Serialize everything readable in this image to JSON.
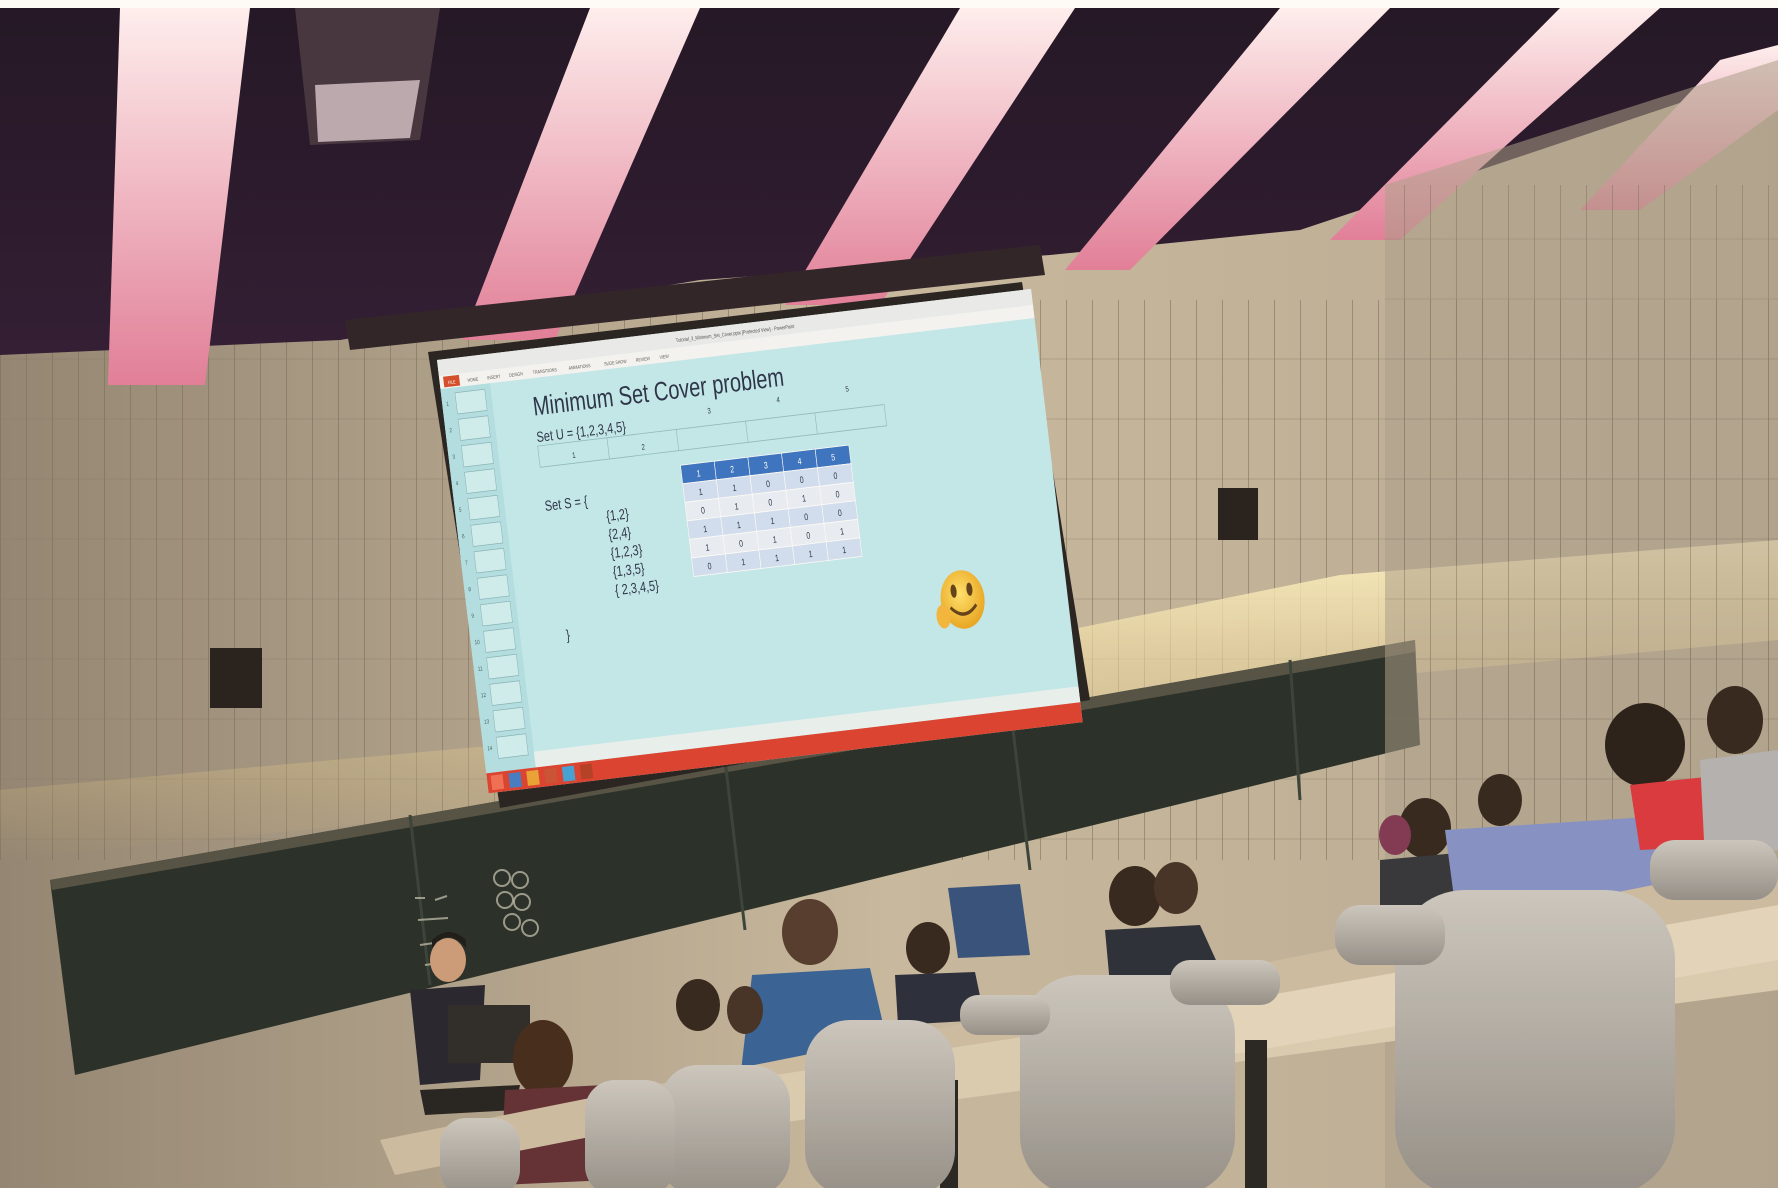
{
  "slide": {
    "window_title": "Tutorial_3_Minimum_Set_Cover.pptx [Protected View] - PowerPoint",
    "ribbon_tabs": [
      "FILE",
      "HOME",
      "INSERT",
      "DESIGN",
      "TRANSITIONS",
      "ANIMATIONS",
      "SLIDE SHOW",
      "REVIEW",
      "VIEW"
    ],
    "title": "Minimum Set Cover problem",
    "set_u": "Set U = {1,2,3,4,5}",
    "u_header_top": [
      "",
      "",
      "3",
      "4",
      "5"
    ],
    "u_header_bottom": [
      "1",
      "2"
    ],
    "set_s_open": "Set S = {",
    "set_s_items": [
      "{1,2}",
      "{2,4}",
      "{1,2,3}",
      "{1,3,5}",
      "{  2,3,4,5}"
    ],
    "set_s_close": "}",
    "matrix_header": [
      "1",
      "2",
      "3",
      "4",
      "5"
    ],
    "matrix_rows": [
      [
        "1",
        "1",
        "0",
        "0",
        "0"
      ],
      [
        "0",
        "1",
        "0",
        "1",
        "0"
      ],
      [
        "1",
        "1",
        "1",
        "0",
        "0"
      ],
      [
        "1",
        "0",
        "1",
        "0",
        "1"
      ],
      [
        "0",
        "1",
        "1",
        "1",
        "1"
      ]
    ],
    "slide_panel_numbers": [
      "1",
      "2",
      "3",
      "4",
      "5",
      "6",
      "7",
      "8",
      "9",
      "10",
      "11",
      "12",
      "13",
      "14"
    ],
    "emoji_icon": "smiley-face-icon"
  },
  "colors": {
    "ceiling": "#1c0d2a",
    "wall": "#b8ab96",
    "slide_bg": "#bfeaf0",
    "table_header": "#2f6fc4",
    "chalkboard": "#1f2a26",
    "taskbar": "#d83a2a"
  }
}
